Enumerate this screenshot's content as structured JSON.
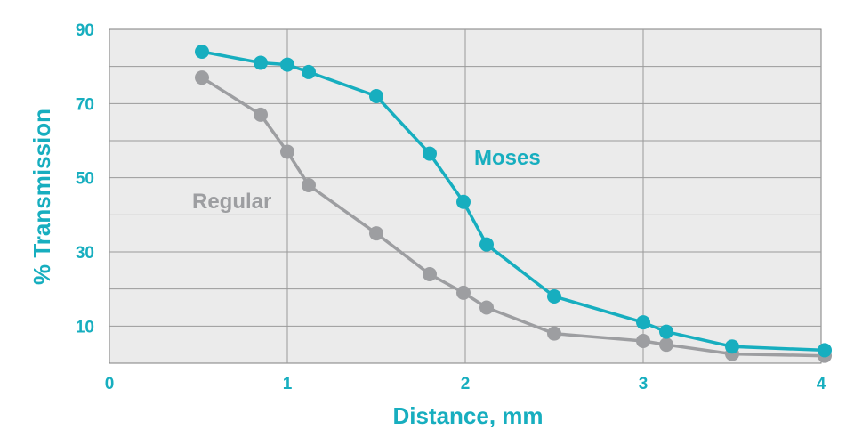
{
  "chart_data": {
    "type": "line",
    "title": "",
    "xlabel": "Distance, mm",
    "ylabel": "% Transmission",
    "xlim": [
      0,
      4
    ],
    "ylim": [
      0,
      90
    ],
    "xticks": [
      0,
      1,
      2,
      3,
      4
    ],
    "yticks": [
      10,
      30,
      50,
      70,
      90
    ],
    "grid": true,
    "legend": "inline labels",
    "series": [
      {
        "name": "Moses",
        "color": "#17aebf",
        "x": [
          0.52,
          0.85,
          1.0,
          1.12,
          1.5,
          1.8,
          1.99,
          2.12,
          2.5,
          3.0,
          3.13,
          3.5,
          4.02
        ],
        "y": [
          84,
          81,
          80.5,
          78.5,
          72,
          56.5,
          43.5,
          32,
          18,
          11,
          8.5,
          4.5,
          3.5
        ]
      },
      {
        "name": "Regular",
        "color": "#9d9ea1",
        "x": [
          0.52,
          0.85,
          1.0,
          1.12,
          1.5,
          1.8,
          1.99,
          2.12,
          2.5,
          3.0,
          3.13,
          3.5,
          4.02
        ],
        "y": [
          77,
          67,
          57,
          48,
          35,
          24,
          19,
          15,
          8,
          6,
          5,
          2.5,
          2
        ]
      }
    ]
  }
}
